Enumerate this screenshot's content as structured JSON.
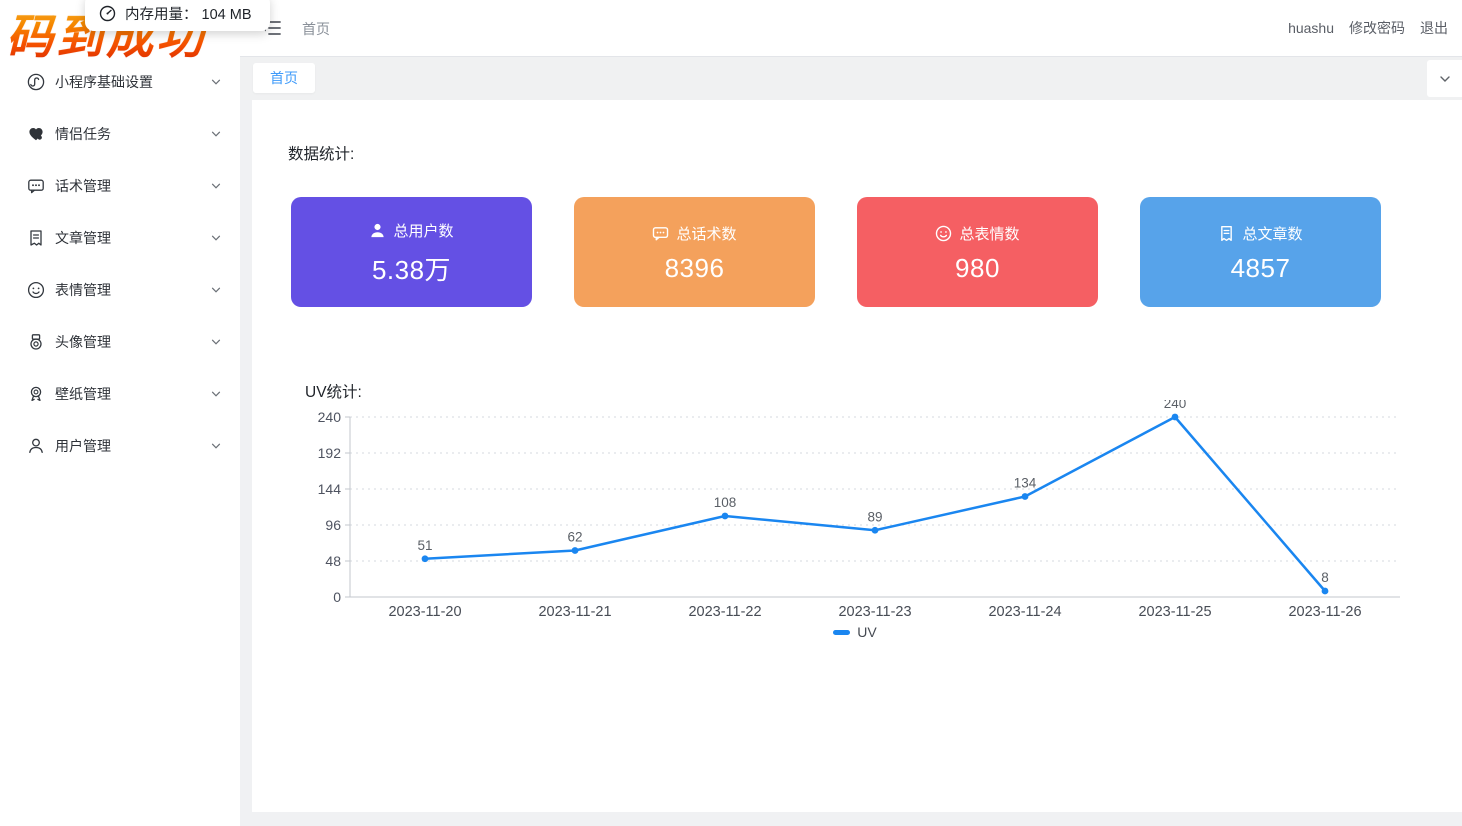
{
  "memory_overlay": {
    "icon": "speedometer-icon",
    "label": "内存用量：",
    "value": "104 MB"
  },
  "logo_text": "码到成功",
  "topbar": {
    "breadcrumb": "首页",
    "username": "huashu",
    "change_password_label": "修改密码",
    "logout_label": "退出"
  },
  "tabs_bar": {
    "tabs": [
      {
        "label": "首页",
        "active": true
      }
    ]
  },
  "sidebar": {
    "items": [
      {
        "label": "小程序基础设置",
        "icon": "miniprogram-icon"
      },
      {
        "label": "情侣任务",
        "icon": "couple-task-icon"
      },
      {
        "label": "话术管理",
        "icon": "chat-bubble-icon"
      },
      {
        "label": "文章管理",
        "icon": "article-icon"
      },
      {
        "label": "表情管理",
        "icon": "emoji-icon"
      },
      {
        "label": "头像管理",
        "icon": "avatar-medal-icon"
      },
      {
        "label": "壁纸管理",
        "icon": "wallpaper-award-icon"
      },
      {
        "label": "用户管理",
        "icon": "user-icon"
      }
    ]
  },
  "stats": {
    "section_title": "数据统计:",
    "cards": [
      {
        "label": "总用户数",
        "value": "5.38万",
        "color": "#6450e4",
        "icon": "user-icon"
      },
      {
        "label": "总话术数",
        "value": "8396",
        "color": "#f4a15c",
        "icon": "chat-bubble-icon"
      },
      {
        "label": "总表情数",
        "value": "980",
        "color": "#f55f63",
        "icon": "emoji-icon"
      },
      {
        "label": "总文章数",
        "value": "4857",
        "color": "#57a3ea",
        "icon": "article-icon"
      }
    ]
  },
  "uv_section_title": "UV统计:",
  "chart_data": {
    "type": "line",
    "title": "UV统计",
    "x": [
      "2023-11-20",
      "2023-11-21",
      "2023-11-22",
      "2023-11-23",
      "2023-11-24",
      "2023-11-25",
      "2023-11-26"
    ],
    "series": [
      {
        "name": "UV",
        "values": [
          51,
          62,
          108,
          89,
          134,
          240,
          8
        ],
        "color": "#1a86f0"
      }
    ],
    "ylim": [
      0,
      240
    ],
    "yticks": [
      0,
      48,
      96,
      144,
      192,
      240
    ],
    "xlabel": "",
    "ylabel": "",
    "grid": "horizontal-dotted",
    "legend_position": "bottom",
    "point_labels": true,
    "axis_color": "#c3c7ce",
    "grid_color": "#d6d9df",
    "tick_label_color": "#4e5360",
    "x_label_color": "#474c55",
    "point_label_color": "#5a5f66"
  }
}
